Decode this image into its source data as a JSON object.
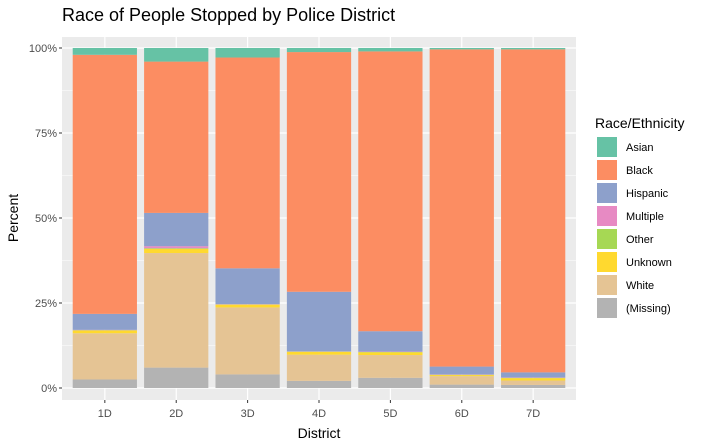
{
  "chart_data": {
    "type": "bar",
    "stacked": "percent",
    "title": "Race of People Stopped by Police District",
    "xlabel": "District",
    "ylabel": "Percent",
    "ylim": [
      0,
      1
    ],
    "y_ticks": [
      "0%",
      "25%",
      "50%",
      "75%",
      "100%"
    ],
    "y_tick_values": [
      0,
      0.25,
      0.5,
      0.75,
      1
    ],
    "grid": true,
    "legend_position": "right",
    "legend_title": "Race/Ethnicity",
    "categories": [
      "1D",
      "2D",
      "3D",
      "4D",
      "5D",
      "6D",
      "7D"
    ],
    "series": [
      {
        "name": "Asian",
        "color": "#66C2A5",
        "values": [
          0.02,
          0.04,
          0.028,
          0.012,
          0.01,
          0.004,
          0.004
        ]
      },
      {
        "name": "Black",
        "color": "#FC8D62",
        "values": [
          0.762,
          0.445,
          0.62,
          0.705,
          0.823,
          0.933,
          0.95
        ]
      },
      {
        "name": "Hispanic",
        "color": "#8DA0CB",
        "values": [
          0.047,
          0.098,
          0.105,
          0.175,
          0.06,
          0.023,
          0.015
        ]
      },
      {
        "name": "Multiple",
        "color": "#E78AC3",
        "values": [
          0.001,
          0.006,
          0.001,
          0.001,
          0.001,
          0.001,
          0.001
        ]
      },
      {
        "name": "Other",
        "color": "#A6D854",
        "values": [
          0.001,
          0.002,
          0.001,
          0.001,
          0.001,
          0.001,
          0.001
        ]
      },
      {
        "name": "Unknown",
        "color": "#FFD92F",
        "values": [
          0.008,
          0.012,
          0.008,
          0.008,
          0.008,
          0.003,
          0.007
        ]
      },
      {
        "name": "White",
        "color": "#E5C494",
        "values": [
          0.136,
          0.337,
          0.197,
          0.077,
          0.067,
          0.025,
          0.013
        ]
      },
      {
        "name": "(Missing)",
        "color": "#B3B3B3",
        "values": [
          0.025,
          0.06,
          0.04,
          0.021,
          0.03,
          0.01,
          0.009
        ]
      }
    ]
  }
}
